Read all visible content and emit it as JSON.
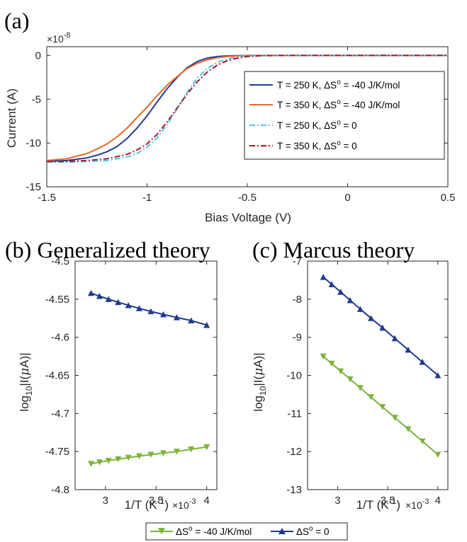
{
  "chart_data": [
    {
      "panel_label": "(a)",
      "type": "line",
      "xlabel": "Bias Voltage (V)",
      "ylabel": "Current (A)",
      "xlim": [
        -1.5,
        0.5
      ],
      "ylim": [
        -15,
        1
      ],
      "y_multiplier": "×10",
      "y_multiplier_exp": "-8",
      "xticks": [
        "-1.5",
        "-1",
        "-0.5",
        "0",
        "0.5"
      ],
      "yticks": [
        "0",
        "-5",
        "-10",
        "-15"
      ],
      "legend_position": "right",
      "series": [
        {
          "name": "T = 250 K,  ΔS",
          "name_sup": "o",
          "name_tail": " = -40 J/K/mol",
          "color": "#1f3a93",
          "style": "solid",
          "x": [
            -1.5,
            -1.4,
            -1.3,
            -1.25,
            -1.2,
            -1.15,
            -1.1,
            -1.05,
            -1.0,
            -0.95,
            -0.9,
            -0.85,
            -0.8,
            -0.75,
            -0.7,
            -0.65,
            -0.6,
            -0.55,
            -0.5,
            -0.4,
            -0.2,
            0.0,
            0.2,
            0.5
          ],
          "y": [
            -12.1,
            -12.0,
            -11.7,
            -11.4,
            -11.0,
            -10.4,
            -9.5,
            -8.3,
            -6.9,
            -5.3,
            -3.8,
            -2.5,
            -1.4,
            -0.7,
            -0.3,
            -0.12,
            -0.05,
            -0.02,
            0,
            0,
            0,
            0,
            0,
            0
          ]
        },
        {
          "name": "T = 350 K,  ΔS",
          "name_sup": "o",
          "name_tail": " = -40 J/K/mol",
          "color": "#e8692a",
          "style": "solid",
          "x": [
            -1.5,
            -1.4,
            -1.3,
            -1.25,
            -1.2,
            -1.15,
            -1.1,
            -1.05,
            -1.0,
            -0.95,
            -0.9,
            -0.85,
            -0.8,
            -0.75,
            -0.7,
            -0.65,
            -0.6,
            -0.55,
            -0.5,
            -0.4,
            -0.2,
            0.0,
            0.2,
            0.5
          ],
          "y": [
            -12.0,
            -11.8,
            -11.2,
            -10.7,
            -10.1,
            -9.3,
            -8.3,
            -7.1,
            -5.9,
            -4.6,
            -3.4,
            -2.4,
            -1.5,
            -0.9,
            -0.5,
            -0.25,
            -0.12,
            -0.05,
            -0.02,
            0,
            0,
            0,
            0,
            0
          ]
        },
        {
          "name": "T = 250 K,  ΔS",
          "name_sup": "o",
          "name_tail": " = 0",
          "color": "#4fc3e8",
          "style": "dashdot",
          "x": [
            -1.5,
            -1.4,
            -1.3,
            -1.2,
            -1.1,
            -1.05,
            -1.0,
            -0.95,
            -0.9,
            -0.85,
            -0.8,
            -0.75,
            -0.7,
            -0.65,
            -0.6,
            -0.55,
            -0.5,
            -0.45,
            -0.4,
            -0.3,
            -0.2,
            0.0,
            0.2,
            0.5
          ],
          "y": [
            -12.2,
            -12.2,
            -12.1,
            -12.0,
            -11.6,
            -11.2,
            -10.5,
            -9.4,
            -7.9,
            -6.1,
            -4.2,
            -2.6,
            -1.5,
            -0.8,
            -0.4,
            -0.15,
            -0.05,
            -0.02,
            0,
            0,
            0,
            0,
            0,
            0
          ]
        },
        {
          "name": "T = 350 K,  ΔS",
          "name_sup": "o",
          "name_tail": " = 0",
          "color": "#a01c2c",
          "style": "dashdot",
          "x": [
            -1.5,
            -1.4,
            -1.3,
            -1.2,
            -1.1,
            -1.05,
            -1.0,
            -0.95,
            -0.9,
            -0.85,
            -0.8,
            -0.75,
            -0.7,
            -0.65,
            -0.6,
            -0.55,
            -0.5,
            -0.45,
            -0.4,
            -0.3,
            -0.2,
            0.0,
            0.2,
            0.5
          ],
          "y": [
            -12.1,
            -12.1,
            -12.0,
            -11.8,
            -11.3,
            -10.8,
            -10.1,
            -9.0,
            -7.6,
            -6.0,
            -4.4,
            -3.0,
            -1.9,
            -1.1,
            -0.6,
            -0.3,
            -0.12,
            -0.05,
            -0.02,
            0,
            0,
            0,
            0,
            0
          ]
        }
      ]
    },
    {
      "panel_label": "(b)",
      "title": "Generalized theory",
      "type": "line",
      "xlabel": "1/T (K",
      "xlabel_sup": "-1",
      "xlabel_tail": ")",
      "x_multiplier": "×10",
      "x_multiplier_exp": "-3",
      "ylabel_pre": "log",
      "ylabel_sub": "10",
      "ylabel_tail": "|I(",
      "ylabel_mu": "μ",
      "ylabel_end": "A)|",
      "xlim": [
        2.7,
        4.1
      ],
      "ylim": [
        -4.8,
        -4.5
      ],
      "xticks": [
        "3",
        "3.5",
        "4"
      ],
      "yticks": [
        "-4.5",
        "-4.55",
        "-4.6",
        "-4.65",
        "-4.7",
        "-4.75",
        "-4.8"
      ],
      "series": [
        {
          "name_ref": 0,
          "color": "#1f3a93",
          "marker": "triangle-up",
          "x": [
            2.857,
            2.941,
            3.03,
            3.125,
            3.226,
            3.333,
            3.448,
            3.571,
            3.704,
            3.846,
            4.0
          ],
          "y": [
            -4.542,
            -4.546,
            -4.55,
            -4.554,
            -4.558,
            -4.562,
            -4.566,
            -4.57,
            -4.574,
            -4.578,
            -4.584
          ]
        },
        {
          "name_ref": 1,
          "color": "#7cb33b",
          "marker": "triangle-down",
          "x": [
            2.857,
            2.941,
            3.03,
            3.125,
            3.226,
            3.333,
            3.448,
            3.571,
            3.704,
            3.846,
            4.0
          ],
          "y": [
            -4.766,
            -4.764,
            -4.762,
            -4.76,
            -4.758,
            -4.756,
            -4.754,
            -4.752,
            -4.75,
            -4.747,
            -4.744
          ]
        }
      ]
    },
    {
      "panel_label": "(c)",
      "title": "Marcus theory",
      "type": "line",
      "xlabel": "1/T (K",
      "xlabel_sup": "-1",
      "xlabel_tail": ")",
      "x_multiplier": "×10",
      "x_multiplier_exp": "-3",
      "ylabel_pre": "log",
      "ylabel_sub": "10",
      "ylabel_tail": "|I(",
      "ylabel_mu": "μ",
      "ylabel_end": "A)|",
      "xlim": [
        2.7,
        4.1
      ],
      "ylim": [
        -13,
        -7
      ],
      "xticks": [
        "3",
        "3.5",
        "4"
      ],
      "yticks": [
        "-7",
        "-8",
        "-9",
        "-10",
        "-11",
        "-12",
        "-13"
      ],
      "series": [
        {
          "name_ref": 0,
          "color": "#1f3a93",
          "marker": "triangle-up",
          "x": [
            2.857,
            2.941,
            3.03,
            3.125,
            3.226,
            3.333,
            3.448,
            3.571,
            3.704,
            3.846,
            4.0
          ],
          "y": [
            -7.42,
            -7.61,
            -7.81,
            -8.03,
            -8.26,
            -8.5,
            -8.75,
            -9.03,
            -9.33,
            -9.65,
            -10.0
          ]
        },
        {
          "name_ref": 1,
          "color": "#7cb33b",
          "marker": "triangle-down",
          "x": [
            2.857,
            2.941,
            3.03,
            3.125,
            3.226,
            3.333,
            3.448,
            3.571,
            3.704,
            3.846,
            4.0
          ],
          "y": [
            -9.5,
            -9.69,
            -9.89,
            -10.1,
            -10.33,
            -10.57,
            -10.83,
            -11.11,
            -11.41,
            -11.73,
            -12.08
          ]
        }
      ]
    }
  ],
  "bottom_legend": {
    "position": "bottom-center",
    "entries": [
      {
        "pre": "ΔS",
        "sup": "o",
        "tail": " = -40 J/K/mol",
        "color": "#7cb33b",
        "marker": "triangle-down"
      },
      {
        "pre": "ΔS",
        "sup": "o",
        "tail": " = 0",
        "color": "#1f3a93",
        "marker": "triangle-up"
      }
    ]
  }
}
